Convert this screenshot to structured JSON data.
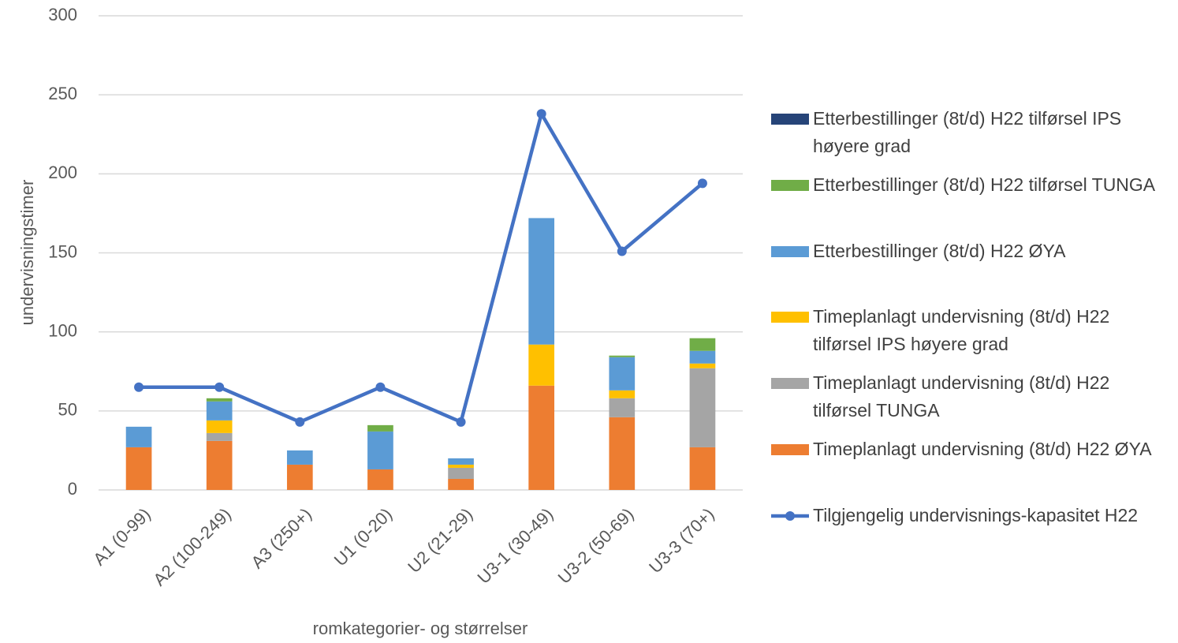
{
  "chart_data": {
    "type": "bar",
    "stacked": true,
    "xlabel": "romkategorier- og størrelser",
    "ylabel": "undervisningstimer",
    "categories": [
      "A1 (0-99)",
      "A2 (100-249)",
      "A3 (250+)",
      "U1 (0-20)",
      "U2 (21-29)",
      "U3-1 (30-49)",
      "U3-2 (50-69)",
      "U3-3 (70+)"
    ],
    "ylim": [
      0,
      300
    ],
    "yticks": [
      0,
      50,
      100,
      150,
      200,
      250,
      300
    ],
    "grid": true,
    "series": [
      {
        "name": "Timeplanlagt undervisning (8t/d) H22 ØYA",
        "color": "#ed7d31",
        "values": [
          27,
          31,
          16,
          13,
          7,
          66,
          46,
          27
        ]
      },
      {
        "name": "Timeplanlagt undervisning (8t/d) H22 tilførsel TUNGA",
        "color": "#a5a5a5",
        "values": [
          0,
          5,
          0,
          0,
          7,
          0,
          12,
          50
        ]
      },
      {
        "name": "Timeplanlagt undervisning (8t/d) H22 tilførsel IPS høyere grad",
        "color": "#ffc000",
        "values": [
          0,
          8,
          0,
          0,
          2,
          26,
          5,
          3
        ]
      },
      {
        "name": "Etterbestillinger (8t/d) H22 ØYA",
        "color": "#5b9bd5",
        "values": [
          13,
          12,
          9,
          24,
          4,
          80,
          21,
          8
        ]
      },
      {
        "name": "Etterbestillinger (8t/d) H22 tilførsel TUNGA",
        "color": "#70ad47",
        "values": [
          0,
          2,
          0,
          4,
          0,
          0,
          1,
          8
        ]
      },
      {
        "name": "Etterbestillinger (8t/d) H22 tilførsel IPS høyere grad",
        "color": "#264478",
        "values": [
          0,
          0,
          0,
          0,
          0,
          0,
          0,
          0
        ]
      },
      {
        "name": "Tilgjengelig undervisnings-kapasitet H22",
        "type": "line",
        "color": "#4472c4",
        "values": [
          65,
          65,
          43,
          65,
          43,
          238,
          151,
          194
        ]
      }
    ]
  }
}
